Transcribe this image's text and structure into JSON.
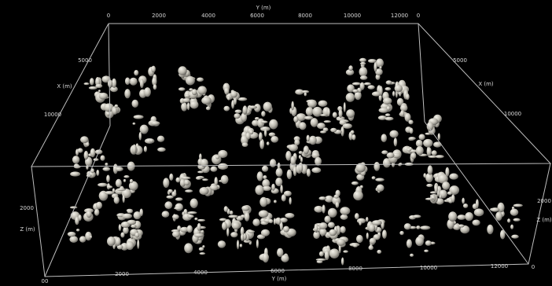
{
  "top_axis": {
    "title": "Y (m)",
    "ticks": [
      "0",
      "2000",
      "4000",
      "6000",
      "8000",
      "10000",
      "12000",
      "0"
    ]
  },
  "bottom_axis": {
    "title": "Y (m)",
    "ticks": [
      "00",
      "2000",
      "4000",
      "6000",
      "8000",
      "10000",
      "12000",
      "0"
    ]
  },
  "left_x_axis": {
    "title": "X (m)",
    "ticks": [
      "5000",
      "10000"
    ]
  },
  "right_x_axis": {
    "title": "X (m)",
    "ticks": [
      "5000",
      "10000"
    ]
  },
  "left_z_axis": {
    "title": "Z (m)",
    "ticks": [
      "2000"
    ]
  },
  "right_z_axis": {
    "title": "Z (m)",
    "ticks": [
      "2000"
    ]
  }
}
